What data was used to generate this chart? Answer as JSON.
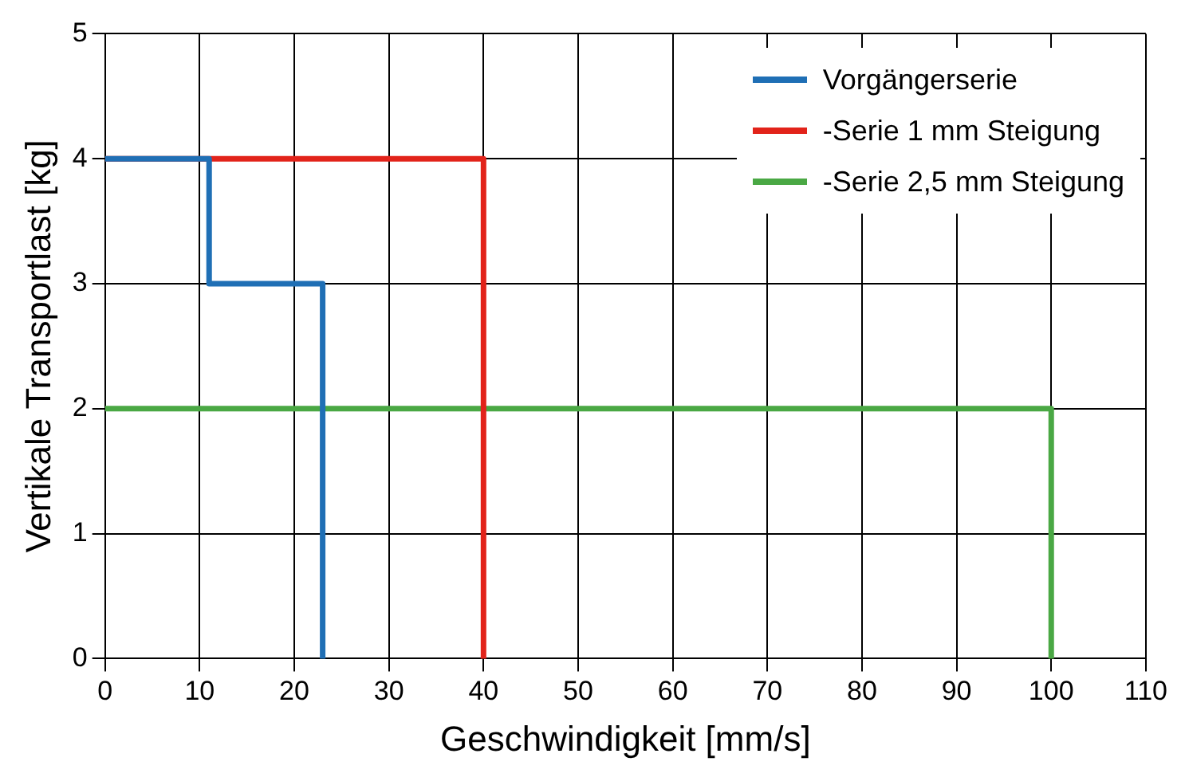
{
  "chart_data": {
    "type": "line",
    "xlabel": "Geschwindigkeit [mm/s]",
    "ylabel": "Vertikale Transportlast [kg]",
    "xlim": [
      0,
      110
    ],
    "xticks": [
      0,
      10,
      20,
      30,
      40,
      50,
      60,
      70,
      80,
      90,
      100,
      110
    ],
    "ylim": [
      0,
      5
    ],
    "yticks": [
      0,
      1,
      2,
      3,
      4,
      5
    ],
    "grid": true,
    "legend": "top right",
    "marker": "none",
    "line_style": "solid",
    "series": [
      {
        "name": "Vorgängerserie",
        "color": "#1f6fb5",
        "x": [
          0,
          11,
          11,
          23,
          23
        ],
        "values": [
          4,
          4,
          3,
          3,
          0
        ]
      },
      {
        "name": "-Serie 1 mm Steigung",
        "color": "#e2231a",
        "x": [
          0,
          40,
          40
        ],
        "values": [
          4,
          4,
          0
        ]
      },
      {
        "name": "-Serie 2,5 mm Steigung",
        "color": "#4aa844",
        "x": [
          0,
          100,
          100
        ],
        "values": [
          2,
          2,
          0
        ]
      }
    ]
  }
}
